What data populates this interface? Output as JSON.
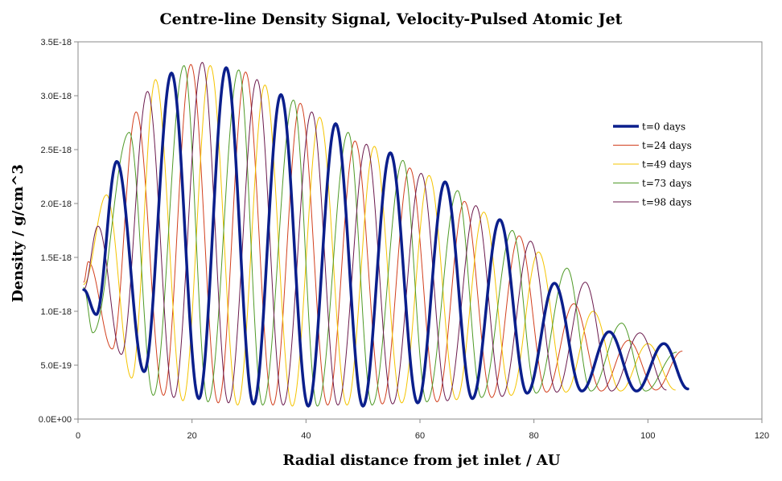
{
  "chart_data": {
    "type": "line",
    "title": "Centre-line Density Signal, Velocity-Pulsed Atomic Jet",
    "xlabel": "Radial distance from jet inlet / AU",
    "ylabel": "Density / g/cm^3",
    "xlim": [
      0,
      120
    ],
    "ylim": [
      0,
      3.5e-18
    ],
    "x_ticks": [
      0,
      20,
      40,
      60,
      80,
      100,
      120
    ],
    "x_tick_labels": [
      "0",
      "20",
      "40",
      "60",
      "80",
      "100",
      "120"
    ],
    "y_ticks": [
      0,
      5e-19,
      1e-18,
      1.5e-18,
      2e-18,
      2.5e-18,
      3e-18,
      3.5e-18
    ],
    "y_tick_labels": [
      "0.0E+00",
      "5.0E-19",
      "1.0E-18",
      "1.5E-18",
      "2.0E-18",
      "2.5E-18",
      "3.0E-18",
      "3.5E-18"
    ],
    "grid": false,
    "legend_position": "right",
    "x_range": [
      1,
      107
    ],
    "wavelength_au": 9.6,
    "series": [
      {
        "name": "t=0 days",
        "color": "#0b1f8c",
        "width": 3.5,
        "peaks_x": [
          6.8,
          16.4,
          26.0,
          35.6,
          45.2,
          54.8,
          64.4,
          74.0,
          83.6,
          93.2,
          102.8
        ],
        "peaks_y": [
          2.39e-18,
          3.21e-18,
          3.26e-18,
          3.01e-18,
          2.74e-18,
          2.47e-18,
          2.2e-18,
          1.85e-18,
          1.26e-18,
          8.1e-19,
          7e-19
        ],
        "troughs_x": [
          3.2,
          11.6,
          21.2,
          30.8,
          40.4,
          50.0,
          59.6,
          69.2,
          78.8,
          88.4,
          98.0,
          107.0
        ],
        "troughs_y": [
          9.7e-19,
          4.4e-19,
          1.9e-19,
          1.4e-19,
          1.2e-19,
          1.2e-19,
          1.5e-19,
          1.9e-19,
          2.4e-19,
          2.6e-19,
          2.6e-19,
          2.8e-19
        ],
        "start_y": 1.2e-18
      },
      {
        "name": "t=24 days",
        "color": "#d2401e",
        "width": 1,
        "peaks_x": [
          1.8,
          10.2,
          19.8,
          29.4,
          39.0,
          48.6,
          58.2,
          67.8,
          77.4,
          87.0,
          96.6,
          106.0
        ],
        "peaks_y": [
          1.46e-18,
          2.85e-18,
          3.29e-18,
          3.22e-18,
          2.93e-18,
          2.58e-18,
          2.33e-18,
          2.02e-18,
          1.7e-18,
          1.07e-18,
          7.3e-19,
          6.3e-19
        ],
        "troughs_x": [
          6.0,
          15.0,
          24.6,
          34.2,
          43.8,
          53.4,
          63.0,
          72.6,
          82.2,
          91.8,
          101.4
        ],
        "troughs_y": [
          6.5e-19,
          2.2e-19,
          1.5e-19,
          1.3e-19,
          1.3e-19,
          1.4e-19,
          1.6e-19,
          2e-19,
          2.5e-19,
          2.6e-19,
          2.7e-19
        ],
        "start_y": 1.27e-18
      },
      {
        "name": "t=49 days",
        "color": "#f5c400",
        "width": 1,
        "peaks_x": [
          5.0,
          13.6,
          23.2,
          32.8,
          42.4,
          52.0,
          61.6,
          71.2,
          80.8,
          90.4,
          100.0
        ],
        "peaks_y": [
          2.08e-18,
          3.15e-18,
          3.28e-18,
          3.1e-18,
          2.8e-18,
          2.53e-18,
          2.26e-18,
          1.92e-18,
          1.55e-18,
          1e-18,
          7e-19
        ],
        "troughs_x": [
          1.0,
          9.4,
          18.4,
          28.0,
          37.6,
          47.2,
          56.8,
          66.4,
          76.0,
          85.6,
          95.2,
          104.8
        ],
        "troughs_y": [
          1.25e-18,
          3.8e-19,
          1.7e-19,
          1.3e-19,
          1.2e-19,
          1.3e-19,
          1.5e-19,
          1.8e-19,
          2.2e-19,
          2.5e-19,
          2.6e-19,
          2.7e-19
        ],
        "start_y": 1.25e-18
      },
      {
        "name": "t=73 days",
        "color": "#4f9a27",
        "width": 1,
        "peaks_x": [
          9.0,
          18.6,
          28.2,
          37.8,
          47.4,
          57.0,
          66.6,
          76.2,
          85.8,
          95.4,
          105.0
        ],
        "peaks_y": [
          2.66e-18,
          3.28e-18,
          3.24e-18,
          2.96e-18,
          2.66e-18,
          2.4e-18,
          2.12e-18,
          1.75e-18,
          1.4e-18,
          8.9e-19,
          6.2e-19
        ],
        "troughs_x": [
          2.6,
          13.2,
          22.8,
          32.4,
          42.0,
          51.6,
          61.2,
          70.8,
          80.4,
          90.0,
          99.6
        ],
        "troughs_y": [
          8e-19,
          2.2e-19,
          1.6e-19,
          1.3e-19,
          1.2e-19,
          1.3e-19,
          1.6e-19,
          2e-19,
          2.4e-19,
          2.6e-19,
          2.6e-19
        ],
        "start_y": 1.22e-18
      },
      {
        "name": "t=98 days",
        "color": "#6b1a4d",
        "width": 1,
        "peaks_x": [
          3.5,
          12.2,
          21.8,
          31.4,
          41.0,
          50.6,
          60.2,
          69.8,
          79.4,
          89.0,
          98.6
        ],
        "peaks_y": [
          1.79e-18,
          3.04e-18,
          3.31e-18,
          3.15e-18,
          2.85e-18,
          2.55e-18,
          2.28e-18,
          1.98e-18,
          1.65e-18,
          1.27e-18,
          8e-19
        ],
        "troughs_x": [
          7.6,
          16.8,
          26.4,
          36.0,
          45.6,
          55.2,
          64.8,
          74.4,
          84.0,
          93.6,
          103.2
        ],
        "troughs_y": [
          6e-19,
          2e-19,
          1.5e-19,
          1.3e-19,
          1.3e-19,
          1.4e-19,
          1.7e-19,
          2.1e-19,
          2.5e-19,
          2.6e-19,
          2.7e-19
        ],
        "start_y": 1.2e-18
      }
    ]
  }
}
